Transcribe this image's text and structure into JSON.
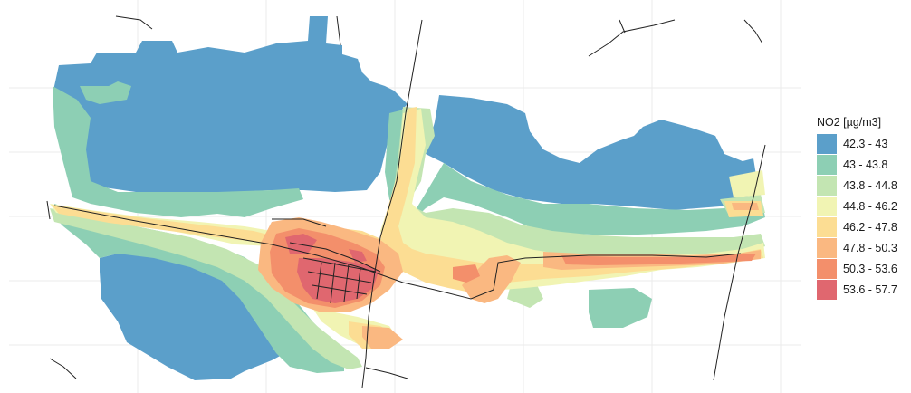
{
  "legend": {
    "title": "NO2 [µg/m3]",
    "items": [
      {
        "label": "42.3 - 43",
        "color": "#5b9fca"
      },
      {
        "label": "43 - 43.8",
        "color": "#8dcfb4"
      },
      {
        "label": "43.8 - 44.8",
        "color": "#c3e5b2"
      },
      {
        "label": "44.8 - 46.2",
        "color": "#f1f4b3"
      },
      {
        "label": "46.2 - 47.8",
        "color": "#fcdd93"
      },
      {
        "label": "47.8 - 50.3",
        "color": "#fab881"
      },
      {
        "label": "50.3 - 53.6",
        "color": "#f38f6b"
      },
      {
        "label": "53.6 - 57.7",
        "color": "#e0676f"
      }
    ]
  },
  "map": {
    "background": "#ffffff",
    "gridline_color": "#ebebeb",
    "road_color": "#222222"
  }
}
